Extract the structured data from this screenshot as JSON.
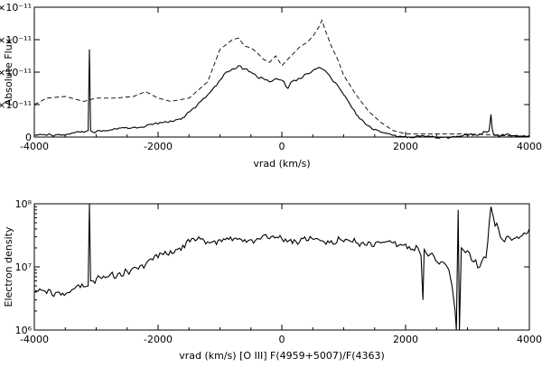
{
  "chart_data": [
    {
      "type": "line",
      "xlabel": "vrad (km/s)",
      "ylabel": "Absolute Flux",
      "xlim": [
        -4000,
        4000
      ],
      "ylim": [
        0,
        4e-11
      ],
      "y_scale": "linear",
      "x_ticks": [
        {
          "value": -4000,
          "label": "-4000"
        },
        {
          "value": -2000,
          "label": "-2000"
        },
        {
          "value": 0,
          "label": "0"
        },
        {
          "value": 2000,
          "label": "2000"
        },
        {
          "value": 4000,
          "label": "4000"
        }
      ],
      "y_ticks": [
        {
          "value": 0,
          "label": "0"
        },
        {
          "value": 1e-11,
          "label": "1×10⁻¹¹"
        },
        {
          "value": 2e-11,
          "label": "2×10⁻¹¹"
        },
        {
          "value": 3e-11,
          "label": "3×10⁻¹¹"
        },
        {
          "value": 4e-11,
          "label": "4×10⁻¹¹"
        }
      ],
      "series": [
        {
          "style": "solid",
          "x": [
            -4000,
            -3800,
            -3600,
            -3400,
            -3200,
            -3130,
            -3110,
            -3090,
            -3050,
            -2800,
            -2400,
            -2000,
            -1800,
            -1600,
            -1400,
            -1200,
            -1000,
            -900,
            -800,
            -700,
            -600,
            -500,
            -400,
            -300,
            -200,
            -100,
            0,
            100,
            150,
            200,
            300,
            400,
            500,
            600,
            700,
            800,
            900,
            1000,
            1200,
            1400,
            1600,
            1800,
            2000,
            2400,
            2800,
            3000,
            3200,
            3350,
            3380,
            3400,
            3420,
            3450,
            3600,
            3800,
            4000
          ],
          "y": [
            5e-13,
            5e-13,
            8e-13,
            1.2e-12,
            1.5e-12,
            2e-12,
            2.7e-11,
            2e-12,
            1.5e-12,
            2e-12,
            3e-12,
            4e-12,
            5e-12,
            6e-12,
            9e-12,
            1.3e-11,
            1.75e-11,
            2e-11,
            2.1e-11,
            2.2e-11,
            2.1e-11,
            2e-11,
            1.85e-11,
            1.8e-11,
            1.7e-11,
            1.8e-11,
            1.75e-11,
            1.5e-11,
            1.7e-11,
            1.75e-11,
            1.8e-11,
            1.95e-11,
            2.05e-11,
            2.15e-11,
            2.05e-11,
            1.8e-11,
            1.6e-11,
            1.3e-11,
            7e-12,
            3.5e-12,
            1.5e-12,
            5e-13,
            2e-13,
            1e-13,
            0.0,
            5e-13,
            1e-12,
            2e-12,
            7e-12,
            2.5e-12,
            1e-12,
            5e-13,
            5e-13,
            5e-13,
            5e-13
          ]
        },
        {
          "style": "dashed",
          "x": [
            -4000,
            -3800,
            -3500,
            -3200,
            -3000,
            -2700,
            -2400,
            -2200,
            -2000,
            -1800,
            -1500,
            -1200,
            -1000,
            -800,
            -700,
            -600,
            -500,
            -400,
            -300,
            -200,
            -100,
            0,
            100,
            200,
            300,
            400,
            500,
            600,
            650,
            700,
            800,
            900,
            1000,
            1200,
            1400,
            1600,
            1800,
            2000,
            2400,
            2800,
            3200,
            3600,
            4000
          ],
          "y": [
            1e-11,
            1.2e-11,
            1.25e-11,
            1.1e-11,
            1.2e-11,
            1.2e-11,
            1.25e-11,
            1.4e-11,
            1.2e-11,
            1.1e-11,
            1.2e-11,
            1.7e-11,
            2.7e-11,
            3e-11,
            3.05e-11,
            2.8e-11,
            2.75e-11,
            2.6e-11,
            2.4e-11,
            2.3e-11,
            2.5e-11,
            2.2e-11,
            2.4e-11,
            2.6e-11,
            2.8e-11,
            2.9e-11,
            3.1e-11,
            3.4e-11,
            3.6e-11,
            3.3e-11,
            2.8e-11,
            2.4e-11,
            1.9e-11,
            1.3e-11,
            8e-12,
            4.5e-12,
            2e-12,
            1e-12,
            1e-12,
            1e-12,
            8e-13,
            4e-13,
            2e-13
          ]
        }
      ]
    },
    {
      "type": "line",
      "xlabel": "vrad (km/s) [O III] F(4959+5007)/F(4363)",
      "ylabel": "Electron density",
      "xlim": [
        -4000,
        4000
      ],
      "ylim": [
        1000000,
        100000000
      ],
      "y_scale": "log",
      "x_ticks": [
        {
          "value": -4000,
          "label": "-4000"
        },
        {
          "value": -2000,
          "label": "-2000"
        },
        {
          "value": 0,
          "label": "0"
        },
        {
          "value": 2000,
          "label": "2000"
        },
        {
          "value": 4000,
          "label": "4000"
        }
      ],
      "y_ticks": [
        {
          "value": 1000000,
          "label": "10⁶"
        },
        {
          "value": 10000000,
          "label": "10⁷"
        },
        {
          "value": 100000000,
          "label": "10⁸"
        }
      ],
      "series": [
        {
          "style": "solid",
          "x": [
            -4000,
            -3800,
            -3600,
            -3400,
            -3200,
            -3130,
            -3110,
            -3090,
            -3050,
            -2800,
            -2500,
            -2200,
            -2000,
            -1800,
            -1600,
            -1400,
            -1200,
            -1000,
            -800,
            -600,
            -400,
            -200,
            0,
            200,
            400,
            600,
            800,
            1000,
            1200,
            1400,
            1600,
            1800,
            2000,
            2200,
            2250,
            2280,
            2300,
            2400,
            2600,
            2700,
            2750,
            2800,
            2820,
            2850,
            2870,
            2900,
            3000,
            3100,
            3200,
            3300,
            3380,
            3420,
            3500,
            3600,
            3800,
            4000
          ],
          "y": [
            4000000,
            3800000,
            4000000,
            4300000,
            4800000,
            5000000,
            100000000,
            6000000,
            6000000,
            7000000,
            8500000,
            11000000,
            14000000,
            18000000,
            22000000,
            26000000,
            25000000,
            27000000,
            26000000,
            27000000,
            28000000,
            28000000,
            28000000,
            27000000,
            26000000,
            27000000,
            26000000,
            25000000,
            24000000,
            25000000,
            24000000,
            24000000,
            23000000,
            20000000,
            15000000,
            3000000,
            19000000,
            16000000,
            12000000,
            9000000,
            5000000,
            2000000,
            1000000,
            80000000,
            1000000,
            20000000,
            18000000,
            12000000,
            10000000,
            14000000,
            90000000,
            60000000,
            40000000,
            25000000,
            30000000,
            40000000
          ]
        }
      ]
    }
  ]
}
